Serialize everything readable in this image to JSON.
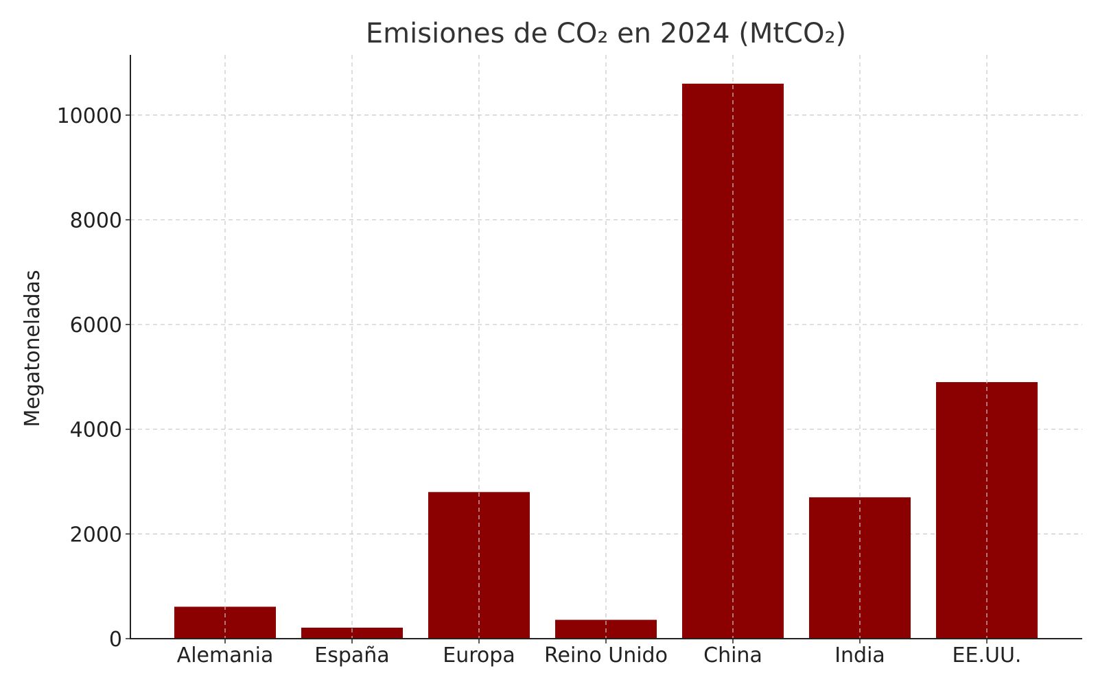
{
  "chart_data": {
    "type": "bar",
    "title": "Emisiones de CO₂ en 2024 (MtCO₂)",
    "xlabel": "",
    "ylabel": "Megatoneladas",
    "categories": [
      "Alemania",
      "España",
      "Europa",
      "Reino Unido",
      "China",
      "India",
      "EE.UU."
    ],
    "values": [
      610,
      210,
      2800,
      360,
      10600,
      2700,
      4900
    ],
    "ylim": [
      0,
      11150
    ],
    "yticks": [
      0,
      2000,
      4000,
      6000,
      8000,
      10000
    ],
    "ytick_labels": [
      "0",
      "2000",
      "4000",
      "6000",
      "8000",
      "10000"
    ],
    "bar_color": "#8b0000",
    "grid": true,
    "legend": "none"
  }
}
